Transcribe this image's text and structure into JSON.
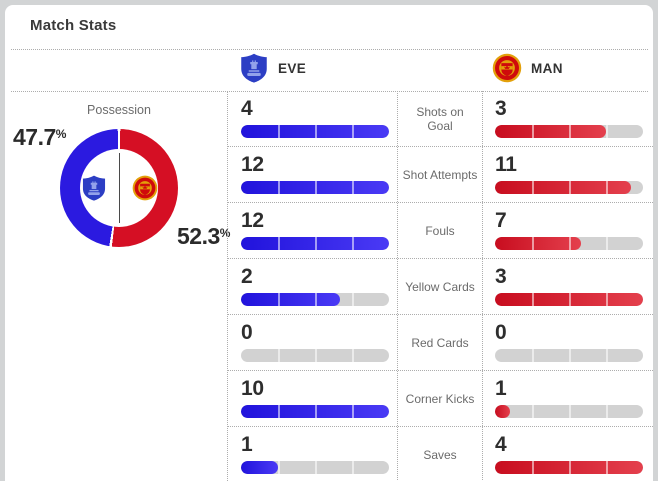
{
  "title": "Match Stats",
  "teams": {
    "home": {
      "abbr": "EVE",
      "name": "Everton"
    },
    "away": {
      "abbr": "MAN",
      "name": "Manchester United"
    }
  },
  "possession": {
    "label": "Possession",
    "home_pct": "47.7",
    "away_pct": "52.3",
    "percent_sign": "%"
  },
  "colors": {
    "home_bar_start": "#2113dc",
    "home_bar_end": "#4a3af5",
    "away_bar_start": "#c80d1f",
    "away_bar_end": "#e4404d",
    "donut_home": "#2b1ae0",
    "donut_away": "#d50f24",
    "bar_track": "#d2d2d2"
  },
  "chart_data": [
    {
      "type": "pie",
      "title": "Possession",
      "labels": [
        "EVE",
        "MAN"
      ],
      "values": [
        47.7,
        52.3
      ],
      "unit": "%",
      "style": "donut, EVE blue on left half, MAN red on right half, split at 12 o'clock"
    },
    {
      "type": "bar",
      "title": "Match Stats",
      "orientation": "horizontal paired bars, each bar scaled to the row maximum, track divided in quarters",
      "categories": [
        "Shots on Goal",
        "Shot Attempts",
        "Fouls",
        "Yellow Cards",
        "Red Cards",
        "Corner Kicks",
        "Saves"
      ],
      "series": [
        {
          "name": "EVE",
          "values": [
            4,
            12,
            12,
            2,
            0,
            10,
            1
          ]
        },
        {
          "name": "MAN",
          "values": [
            3,
            11,
            7,
            3,
            0,
            1,
            4
          ]
        }
      ]
    }
  ]
}
